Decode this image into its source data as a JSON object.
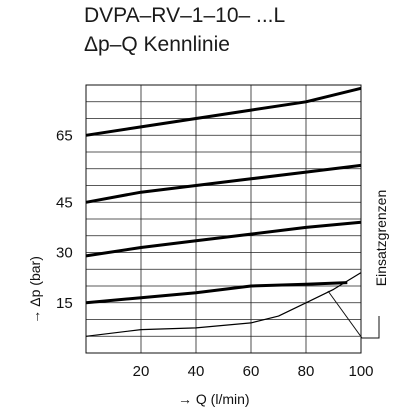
{
  "title_line1": "DVPA–RV–1–10– ...L",
  "title_line2": "Δp–Q Kennlinie",
  "chart_data": {
    "type": "line",
    "xlabel": "→ Q (l/min)",
    "ylabel": "→ Δp (bar)",
    "annotation": "Einsatzgrenzen",
    "xlim": [
      0,
      100
    ],
    "ylim": [
      0,
      80
    ],
    "x_ticks": [
      20,
      40,
      60,
      80,
      100
    ],
    "y_tick_labels": [
      {
        "value": 65,
        "label": "65"
      },
      {
        "value": 45,
        "label": "45"
      },
      {
        "value": 30,
        "label": "30"
      },
      {
        "value": 15,
        "label": "15"
      }
    ],
    "grid": true,
    "series": [
      {
        "values": [
          [
            0,
            65
          ],
          [
            20,
            67.5
          ],
          [
            40,
            70
          ],
          [
            60,
            72.5
          ],
          [
            80,
            75
          ],
          [
            100,
            79
          ]
        ],
        "bold": true
      },
      {
        "values": [
          [
            0,
            45
          ],
          [
            20,
            48
          ],
          [
            40,
            50
          ],
          [
            60,
            52
          ],
          [
            80,
            54
          ],
          [
            100,
            56
          ]
        ],
        "bold": true
      },
      {
        "values": [
          [
            0,
            29
          ],
          [
            20,
            31.5
          ],
          [
            40,
            33.5
          ],
          [
            60,
            35.5
          ],
          [
            80,
            37.5
          ],
          [
            100,
            39
          ]
        ],
        "bold": true
      },
      {
        "values": [
          [
            0,
            15
          ],
          [
            20,
            16.5
          ],
          [
            40,
            18
          ],
          [
            60,
            20
          ],
          [
            80,
            20.5
          ],
          [
            95,
            21
          ]
        ],
        "bold": true
      },
      {
        "values": [
          [
            0,
            5
          ],
          [
            20,
            7
          ],
          [
            40,
            7.5
          ],
          [
            60,
            9
          ],
          [
            70,
            11
          ],
          [
            80,
            15
          ],
          [
            90,
            19
          ],
          [
            100,
            24
          ]
        ],
        "bold": false
      }
    ]
  }
}
